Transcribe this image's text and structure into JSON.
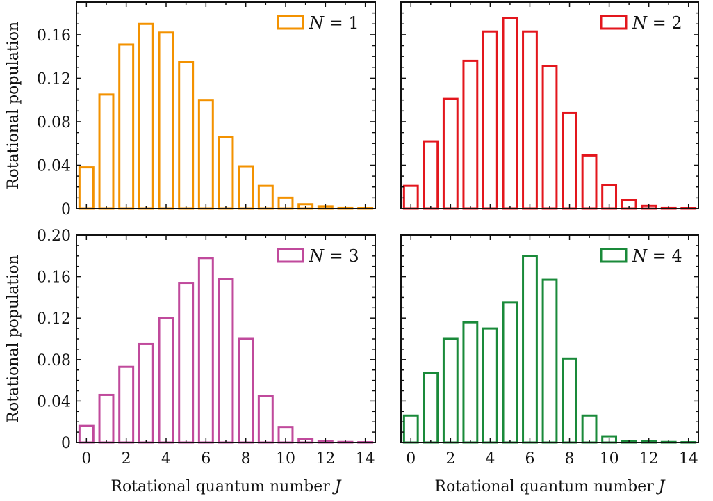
{
  "chart_data": [
    {
      "type": "bar",
      "legend": "N = 1",
      "legend_var": "N",
      "legend_val": "1",
      "color": "#f39200",
      "ylabel": "Rotational population",
      "xlabel": "",
      "x": [
        0,
        1,
        2,
        3,
        4,
        5,
        6,
        7,
        8,
        9,
        10,
        11,
        12,
        13,
        14
      ],
      "values": [
        0.038,
        0.105,
        0.151,
        0.17,
        0.162,
        0.135,
        0.1,
        0.066,
        0.039,
        0.021,
        0.01,
        0.004,
        0.002,
        0.001,
        0.0005
      ],
      "xlim": [
        -0.5,
        14.5
      ],
      "ylim": [
        0,
        0.19
      ],
      "yticks": [
        "0",
        "0.04",
        "0.08",
        "0.12",
        "0.16"
      ],
      "xticks": [],
      "legend_position": "top-right"
    },
    {
      "type": "bar",
      "legend": "N = 2",
      "legend_var": "N",
      "legend_val": "2",
      "color": "#e3161d",
      "ylabel": "",
      "xlabel": "",
      "x": [
        0,
        1,
        2,
        3,
        4,
        5,
        6,
        7,
        8,
        9,
        10,
        11,
        12,
        13,
        14
      ],
      "values": [
        0.021,
        0.062,
        0.101,
        0.136,
        0.163,
        0.175,
        0.163,
        0.131,
        0.088,
        0.049,
        0.022,
        0.008,
        0.003,
        0.001,
        0.0005
      ],
      "xlim": [
        -0.5,
        14.5
      ],
      "ylim": [
        0,
        0.19
      ],
      "yticks": [],
      "xticks": [],
      "legend_position": "top-right"
    },
    {
      "type": "bar",
      "legend": "N = 3",
      "legend_var": "N",
      "legend_val": "3",
      "color": "#c04a9c",
      "ylabel": "Rotational population",
      "xlabel": "Rotational quantum number J",
      "x": [
        0,
        1,
        2,
        3,
        4,
        5,
        6,
        7,
        8,
        9,
        10,
        11,
        12,
        13,
        14
      ],
      "values": [
        0.016,
        0.046,
        0.073,
        0.095,
        0.12,
        0.154,
        0.178,
        0.158,
        0.1,
        0.045,
        0.015,
        0.0035,
        0.001,
        0.0005,
        0.0003
      ],
      "xlim": [
        -0.5,
        14.5
      ],
      "ylim": [
        0,
        0.2
      ],
      "yticks": [
        "0",
        "0.04",
        "0.08",
        "0.12",
        "0.16",
        "0.20"
      ],
      "xticks": [
        "0",
        "2",
        "4",
        "6",
        "8",
        "10",
        "12",
        "14"
      ],
      "legend_position": "top-right"
    },
    {
      "type": "bar",
      "legend": "N = 4",
      "legend_var": "N",
      "legend_val": "4",
      "color": "#1a8a3a",
      "ylabel": "",
      "xlabel": "Rotational quantum number J",
      "x": [
        0,
        1,
        2,
        3,
        4,
        5,
        6,
        7,
        8,
        9,
        10,
        11,
        12,
        13,
        14
      ],
      "values": [
        0.026,
        0.067,
        0.1,
        0.116,
        0.11,
        0.135,
        0.18,
        0.157,
        0.081,
        0.026,
        0.006,
        0.0015,
        0.001,
        0.0005,
        0.0003
      ],
      "xlim": [
        -0.5,
        14.5
      ],
      "ylim": [
        0,
        0.2
      ],
      "yticks": [],
      "xticks": [
        "0",
        "2",
        "4",
        "6",
        "8",
        "10",
        "12",
        "14"
      ],
      "legend_position": "top-right"
    }
  ]
}
